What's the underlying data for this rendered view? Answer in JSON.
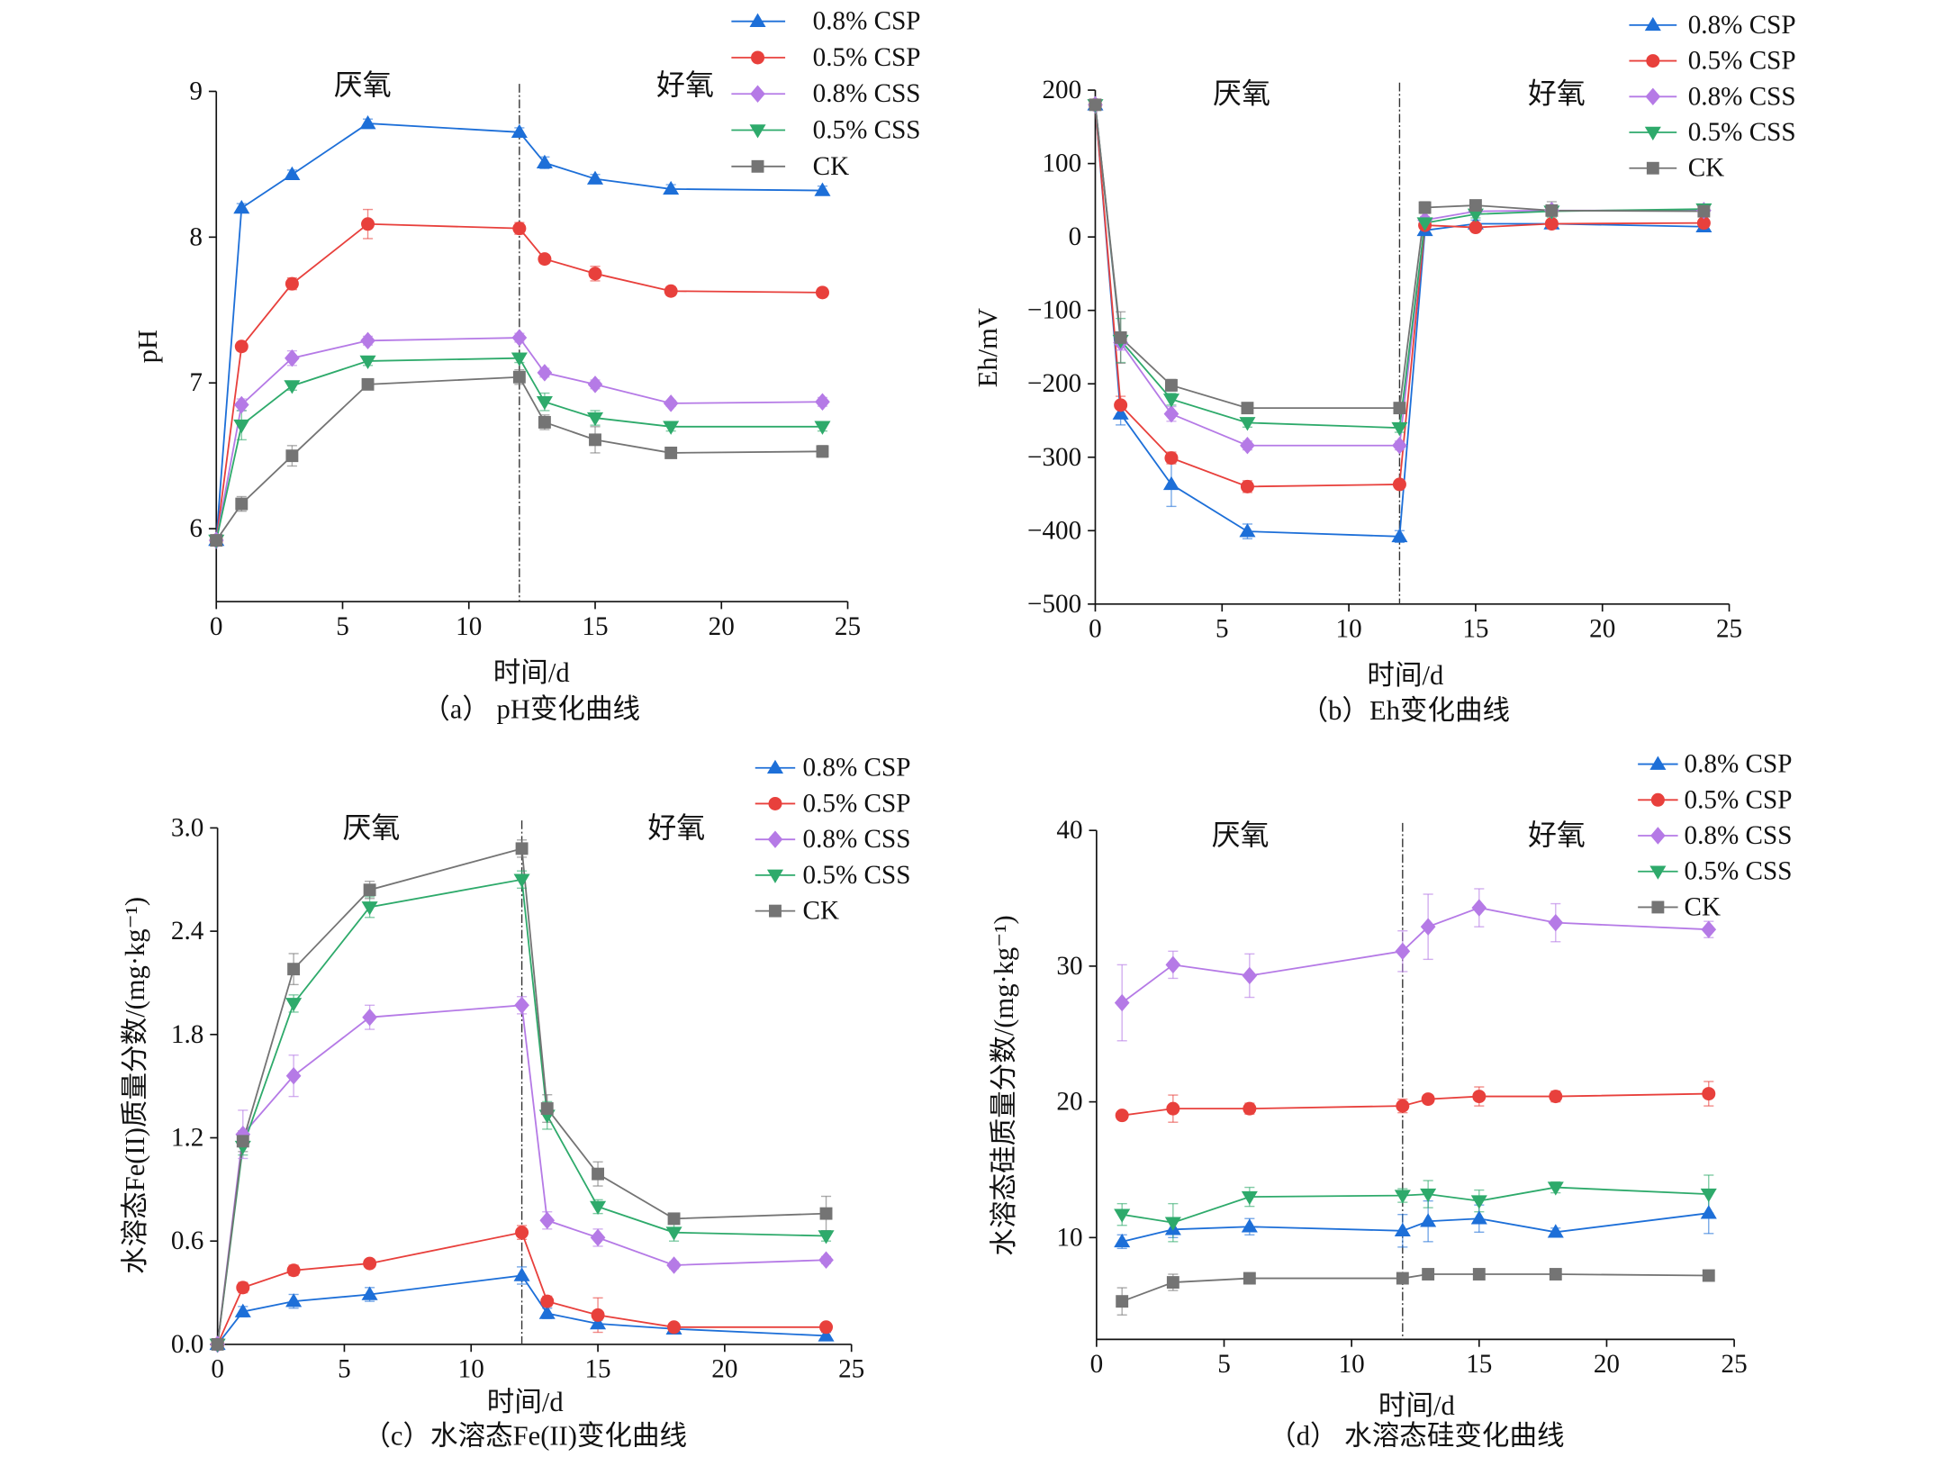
{
  "chart_data": [
    {
      "type": "line",
      "title": "（a） pH变化曲线",
      "xlabel": "时间/d",
      "ylabel": "pH",
      "xlim": [
        0,
        25
      ],
      "ylim": [
        5.5,
        9
      ],
      "xticks": [
        0,
        5,
        10,
        15,
        20,
        25
      ],
      "xtick_labels": [
        "0",
        "5",
        "10",
        "15",
        "20",
        "25"
      ],
      "yticks": [
        6,
        7,
        8,
        9
      ],
      "ytick_labels": [
        "6",
        "7",
        "8",
        "9"
      ],
      "divider_x": 12,
      "annotations": [
        "厌氧",
        "好氧"
      ],
      "grid": false,
      "legend_position": "top-right",
      "series": [
        {
          "name": "0.8% CSP",
          "color": "#1d6fd8",
          "marker": "triangle-up",
          "x": [
            0,
            1,
            3,
            6,
            12,
            13,
            15,
            18,
            24
          ],
          "y": [
            5.92,
            8.2,
            8.43,
            8.78,
            8.72,
            8.51,
            8.4,
            8.33,
            8.32
          ],
          "err": [
            0.02,
            0.03,
            0.03,
            0.03,
            0.03,
            0.04,
            0.03,
            0.03,
            0.03
          ]
        },
        {
          "name": "0.5% CSP",
          "color": "#e8403c",
          "marker": "circle",
          "x": [
            0,
            1,
            3,
            6,
            12,
            13,
            15,
            18,
            24
          ],
          "y": [
            5.92,
            7.25,
            7.68,
            8.09,
            8.06,
            7.85,
            7.75,
            7.63,
            7.62
          ],
          "err": [
            0.02,
            0.03,
            0.04,
            0.1,
            0.04,
            0.03,
            0.05,
            0.03,
            0.03
          ]
        },
        {
          "name": "0.8% CSS",
          "color": "#b57ae6",
          "marker": "diamond",
          "x": [
            0,
            1,
            3,
            6,
            12,
            13,
            15,
            18,
            24
          ],
          "y": [
            5.92,
            6.85,
            7.17,
            7.29,
            7.31,
            7.07,
            6.99,
            6.86,
            6.87
          ],
          "err": [
            0.02,
            0.04,
            0.05,
            0.03,
            0.03,
            0.03,
            0.03,
            0.02,
            0.03
          ]
        },
        {
          "name": "0.5% CSS",
          "color": "#2eaa6b",
          "marker": "triangle-down",
          "x": [
            0,
            1,
            3,
            6,
            12,
            13,
            15,
            18,
            24
          ],
          "y": [
            5.92,
            6.71,
            6.98,
            7.15,
            7.17,
            6.87,
            6.76,
            6.7,
            6.7
          ],
          "err": [
            0.02,
            0.1,
            0.03,
            0.03,
            0.03,
            0.06,
            0.05,
            0.03,
            0.03
          ]
        },
        {
          "name": "CK",
          "color": "#747474",
          "marker": "square",
          "x": [
            0,
            1,
            3,
            6,
            12,
            13,
            15,
            18,
            24
          ],
          "y": [
            5.92,
            6.17,
            6.5,
            6.99,
            7.04,
            6.73,
            6.61,
            6.52,
            6.53
          ],
          "err": [
            0.02,
            0.05,
            0.07,
            0.03,
            0.05,
            0.05,
            0.09,
            0.03,
            0.04
          ]
        }
      ]
    },
    {
      "type": "line",
      "title": "（b）Eh变化曲线",
      "xlabel": "时间/d",
      "ylabel": "Eh/mV",
      "xlim": [
        0,
        25
      ],
      "ylim": [
        -500,
        200
      ],
      "xticks": [
        0,
        5,
        10,
        15,
        20,
        25
      ],
      "xtick_labels": [
        "0",
        "5",
        "10",
        "15",
        "20",
        "25"
      ],
      "yticks": [
        -500,
        -400,
        -300,
        -200,
        -100,
        0,
        100,
        200
      ],
      "ytick_labels": [
        "−500",
        "−400",
        "−300",
        "−200",
        "−100",
        "0",
        "100",
        "200"
      ],
      "divider_x": 12,
      "annotations": [
        "厌氧",
        "好氧"
      ],
      "grid": false,
      "legend_position": "top-right",
      "series": [
        {
          "name": "0.8% CSP",
          "color": "#1d6fd8",
          "marker": "triangle-up",
          "x": [
            0,
            1,
            3,
            6,
            12,
            13,
            15,
            18,
            24
          ],
          "y": [
            180,
            -241,
            -337,
            -401,
            -408,
            9,
            18,
            18,
            14
          ],
          "err": [
            3,
            15,
            30,
            10,
            8,
            6,
            5,
            5,
            5
          ]
        },
        {
          "name": "0.5% CSP",
          "color": "#e8403c",
          "marker": "circle",
          "x": [
            0,
            1,
            3,
            6,
            12,
            13,
            15,
            18,
            24
          ],
          "y": [
            180,
            -229,
            -301,
            -340,
            -337,
            16,
            13,
            18,
            19
          ],
          "err": [
            3,
            12,
            8,
            8,
            5,
            5,
            5,
            5,
            5
          ]
        },
        {
          "name": "0.8% CSS",
          "color": "#b57ae6",
          "marker": "diamond",
          "x": [
            0,
            1,
            3,
            6,
            12,
            13,
            15,
            18,
            24
          ],
          "y": [
            180,
            -144,
            -241,
            -284,
            -284,
            23,
            35,
            36,
            36
          ],
          "err": [
            3,
            10,
            10,
            6,
            6,
            5,
            5,
            5,
            5
          ]
        },
        {
          "name": "0.5% CSS",
          "color": "#2eaa6b",
          "marker": "triangle-down",
          "x": [
            0,
            1,
            3,
            6,
            12,
            13,
            15,
            18,
            24
          ],
          "y": [
            180,
            -141,
            -221,
            -253,
            -260,
            19,
            31,
            35,
            38
          ],
          "err": [
            3,
            30,
            8,
            6,
            6,
            5,
            5,
            8,
            5
          ]
        },
        {
          "name": "CK",
          "color": "#747474",
          "marker": "square",
          "x": [
            0,
            1,
            3,
            6,
            12,
            13,
            15,
            18,
            24
          ],
          "y": [
            180,
            -137,
            -202,
            -233,
            -233,
            40,
            43,
            36,
            35
          ],
          "err": [
            3,
            35,
            8,
            6,
            6,
            8,
            5,
            12,
            5
          ]
        }
      ]
    },
    {
      "type": "line",
      "title": "（c）水溶态Fe(II)变化曲线",
      "xlabel": "时间/d",
      "ylabel": "水溶态Fe(II)质量分数/(mg·kg⁻¹)",
      "xlim": [
        0,
        25
      ],
      "ylim": [
        0,
        3.0
      ],
      "xticks": [
        0,
        5,
        10,
        15,
        20,
        25
      ],
      "xtick_labels": [
        "0",
        "5",
        "10",
        "15",
        "20",
        "25"
      ],
      "yticks": [
        0,
        0.6,
        1.2,
        1.8,
        2.4,
        3.0
      ],
      "ytick_labels": [
        "0.0",
        "0.6",
        "1.2",
        "1.8",
        "2.4",
        "3.0"
      ],
      "divider_x": 12,
      "annotations": [
        "厌氧",
        "好氧"
      ],
      "grid": false,
      "legend_position": "top-right",
      "series": [
        {
          "name": "0.8% CSP",
          "color": "#1d6fd8",
          "marker": "triangle-up",
          "x": [
            0,
            1,
            3,
            6,
            12,
            13,
            15,
            18,
            24
          ],
          "y": [
            0,
            0.19,
            0.25,
            0.29,
            0.4,
            0.18,
            0.12,
            0.09,
            0.05
          ],
          "err": [
            0,
            0.03,
            0.04,
            0.04,
            0.05,
            0.03,
            0.02,
            0.01,
            0.02
          ]
        },
        {
          "name": "0.5% CSP",
          "color": "#e8403c",
          "marker": "circle",
          "x": [
            0,
            1,
            3,
            6,
            12,
            13,
            15,
            18,
            24
          ],
          "y": [
            0,
            0.33,
            0.43,
            0.47,
            0.65,
            0.25,
            0.17,
            0.1,
            0.1
          ],
          "err": [
            0,
            0.03,
            0.03,
            0.02,
            0.04,
            0.03,
            0.1,
            0.02,
            0.02
          ]
        },
        {
          "name": "0.8% CSS",
          "color": "#b57ae6",
          "marker": "diamond",
          "x": [
            0,
            1,
            3,
            6,
            12,
            13,
            15,
            18,
            24
          ],
          "y": [
            0,
            1.22,
            1.56,
            1.9,
            1.97,
            0.72,
            0.62,
            0.46,
            0.49
          ],
          "err": [
            0,
            0.14,
            0.12,
            0.07,
            0.05,
            0.05,
            0.05,
            0.02,
            0.02
          ]
        },
        {
          "name": "0.5% CSS",
          "color": "#2eaa6b",
          "marker": "triangle-down",
          "x": [
            0,
            1,
            3,
            6,
            12,
            13,
            15,
            18,
            24
          ],
          "y": [
            0,
            1.15,
            1.98,
            2.54,
            2.7,
            1.33,
            0.8,
            0.65,
            0.63
          ],
          "err": [
            0,
            0.05,
            0.05,
            0.06,
            0.05,
            0.08,
            0.04,
            0.05,
            0.03
          ]
        },
        {
          "name": "CK",
          "color": "#747474",
          "marker": "square",
          "x": [
            0,
            1,
            3,
            6,
            12,
            13,
            15,
            18,
            24
          ],
          "y": [
            0,
            1.18,
            2.18,
            2.64,
            2.88,
            1.37,
            0.99,
            0.73,
            0.76
          ],
          "err": [
            0,
            0.06,
            0.09,
            0.05,
            0.05,
            0.08,
            0.07,
            0.03,
            0.1
          ]
        }
      ]
    },
    {
      "type": "line",
      "title": "（d） 水溶态硅变化曲线",
      "xlabel": "时间/d",
      "ylabel": "水溶态硅质量分数/(mg·kg⁻¹)",
      "xlim": [
        0,
        25
      ],
      "ylim": [
        2.5,
        40
      ],
      "xticks": [
        0,
        5,
        10,
        15,
        20,
        25
      ],
      "xtick_labels": [
        "0",
        "5",
        "10",
        "15",
        "20",
        "25"
      ],
      "yticks": [
        10,
        20,
        30,
        40
      ],
      "ytick_labels": [
        "10",
        "20",
        "30",
        "40"
      ],
      "divider_x": 12,
      "annotations": [
        "厌氧",
        "好氧"
      ],
      "grid": false,
      "legend_position": "top-right",
      "series": [
        {
          "name": "0.8% CSP",
          "color": "#1d6fd8",
          "marker": "triangle-up",
          "x": [
            1,
            3,
            6,
            12,
            13,
            15,
            18,
            24
          ],
          "y": [
            9.7,
            10.6,
            10.8,
            10.5,
            11.2,
            11.4,
            10.4,
            11.8
          ],
          "err": [
            0.5,
            0.6,
            0.6,
            1.2,
            1.5,
            1.0,
            0.3,
            1.5
          ]
        },
        {
          "name": "0.5% CSP",
          "color": "#e8403c",
          "marker": "circle",
          "x": [
            1,
            3,
            6,
            12,
            13,
            15,
            18,
            24
          ],
          "y": [
            19.0,
            19.5,
            19.5,
            19.7,
            20.2,
            20.4,
            20.4,
            20.6
          ],
          "err": [
            0.3,
            1.0,
            0.4,
            0.5,
            0.3,
            0.7,
            0.4,
            0.9
          ]
        },
        {
          "name": "0.8% CSS",
          "color": "#b57ae6",
          "marker": "diamond",
          "x": [
            1,
            3,
            6,
            12,
            13,
            15,
            18,
            24
          ],
          "y": [
            27.3,
            30.1,
            29.3,
            31.1,
            32.9,
            34.3,
            33.2,
            32.7
          ],
          "err": [
            2.8,
            1.0,
            1.6,
            1.5,
            2.4,
            1.4,
            1.4,
            0.6
          ]
        },
        {
          "name": "0.5% CSS",
          "color": "#2eaa6b",
          "marker": "triangle-down",
          "x": [
            1,
            3,
            6,
            12,
            13,
            15,
            18,
            24
          ],
          "y": [
            11.7,
            11.1,
            13.0,
            13.1,
            13.2,
            12.7,
            13.7,
            13.2
          ],
          "err": [
            0.8,
            1.4,
            0.7,
            0.5,
            1.0,
            0.8,
            0.4,
            1.4
          ]
        },
        {
          "name": "CK",
          "color": "#747474",
          "marker": "square",
          "x": [
            1,
            3,
            6,
            12,
            13,
            15,
            18,
            24
          ],
          "y": [
            5.3,
            6.7,
            7.0,
            7.0,
            7.3,
            7.3,
            7.3,
            7.2
          ],
          "err": [
            1.0,
            0.6,
            0.3,
            0.3,
            0.3,
            0.3,
            0.3,
            0.3
          ]
        }
      ]
    }
  ]
}
